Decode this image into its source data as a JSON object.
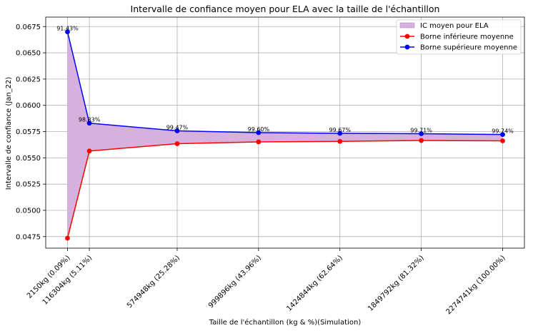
{
  "chart_data": {
    "type": "line",
    "title": "Intervalle de confiance moyen pour ELA avec la taille de l'échantillon",
    "xlabel": "Taille de l'échantillon (kg & %)(Simulation)",
    "ylabel": "Intervalle de confiance (Jan_22)",
    "x": [
      2150,
      116304,
      574948,
      999896,
      1424844,
      1849792,
      2274741
    ],
    "tick_labels": [
      "2150kg (0.09%)",
      "116304kg (5.11%)",
      "574948kg (25.28%)",
      "999896kg (43.96%)",
      "1424844kg (62.64%)",
      "1849792kg (81.32%)",
      "2274741kg (100.00%)"
    ],
    "yticks": [
      "0.0475",
      "0.0500",
      "0.0525",
      "0.0550",
      "0.0575",
      "0.0600",
      "0.0625",
      "0.0650",
      "0.0675"
    ],
    "ylim": [
      0.0464,
      0.0684
    ],
    "xlim": [
      -111600,
      2388500
    ],
    "grid": true,
    "legend_position": "top-right",
    "band_label": "IC moyen pour ELA",
    "band_color": "#d7b1dd",
    "series": [
      {
        "name": "Borne inférieure moyenne",
        "color": "#ff0000",
        "values": [
          0.04735,
          0.05565,
          0.05635,
          0.05652,
          0.05657,
          0.05665,
          0.05662
        ]
      },
      {
        "name": "Borne supérieure moyenne",
        "color": "#0000ff",
        "values": [
          0.067,
          0.0583,
          0.05757,
          0.0574,
          0.05733,
          0.0573,
          0.05722
        ]
      }
    ],
    "annotations": [
      "91.43%",
      "98.83%",
      "99.47%",
      "99.60%",
      "99.67%",
      "99.71%",
      "99.74%"
    ]
  }
}
